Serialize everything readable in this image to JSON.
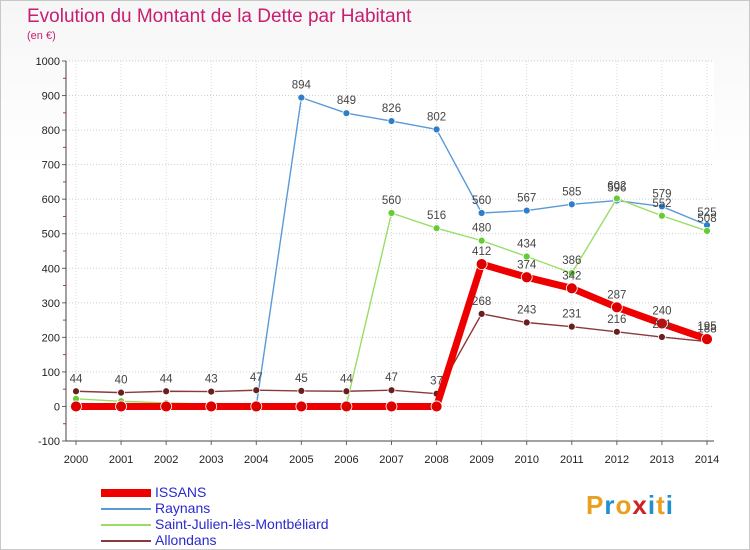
{
  "title": "Evolution du Montant de la Dette par Habitant",
  "unit": "(en €)",
  "logo": {
    "text": "Proxiti",
    "colors": [
      "#e8a020",
      "#2090d0",
      "#e8a020",
      "#d02020",
      "#2090d0",
      "#e8a020",
      "#2090d0"
    ]
  },
  "chart_data": {
    "type": "line",
    "title": "Evolution du Montant de la Dette par Habitant",
    "ylabel": "(en €)",
    "x": [
      2000,
      2001,
      2002,
      2003,
      2004,
      2005,
      2006,
      2007,
      2008,
      2009,
      2010,
      2011,
      2012,
      2013,
      2014
    ],
    "ylim": [
      -100,
      1000
    ],
    "yticks": [
      -100,
      0,
      100,
      200,
      300,
      400,
      500,
      600,
      700,
      800,
      900,
      1000
    ],
    "legend_position": "bottom-left",
    "series": [
      {
        "name": "ISSANS",
        "color": "#ee0000",
        "dot": "#dd0000",
        "values": [
          0,
          0,
          0,
          0,
          0,
          0,
          0,
          0,
          0,
          412,
          374,
          342,
          287,
          240,
          195
        ],
        "labels": [
          null,
          null,
          null,
          null,
          null,
          null,
          null,
          null,
          null,
          "412",
          "374",
          "342",
          "287",
          "240",
          "195"
        ]
      },
      {
        "name": "Raynans",
        "color": "#5a9ad6",
        "dot": "#2f7fc8",
        "values": [
          8,
          5,
          3,
          2,
          1,
          894,
          849,
          826,
          802,
          560,
          567,
          585,
          596,
          579,
          525
        ],
        "labels": [
          null,
          null,
          null,
          null,
          null,
          "894",
          "849",
          "826",
          "802",
          "560",
          "567",
          "585",
          "596",
          "579",
          "525"
        ]
      },
      {
        "name": "Saint-Julien-lès-Montbéliard",
        "color": "#99dd66",
        "dot": "#66cc33",
        "values": [
          22,
          15,
          10,
          6,
          5,
          5,
          5,
          560,
          516,
          480,
          434,
          386,
          602,
          552,
          508
        ],
        "labels": [
          null,
          null,
          null,
          null,
          null,
          null,
          null,
          "560",
          "516",
          "480",
          "434",
          "386",
          "602",
          "552",
          "508"
        ]
      },
      {
        "name": "Allondans",
        "color": "#8a3a3a",
        "dot": "#6a1f1f",
        "values": [
          44,
          40,
          44,
          43,
          47,
          45,
          44,
          47,
          37,
          268,
          243,
          231,
          216,
          201,
          188
        ],
        "labels": [
          "44",
          "40",
          "44",
          "43",
          "47",
          "45",
          "44",
          "47",
          "37",
          "268",
          "243",
          "231",
          "216",
          "201",
          "188"
        ]
      }
    ]
  }
}
